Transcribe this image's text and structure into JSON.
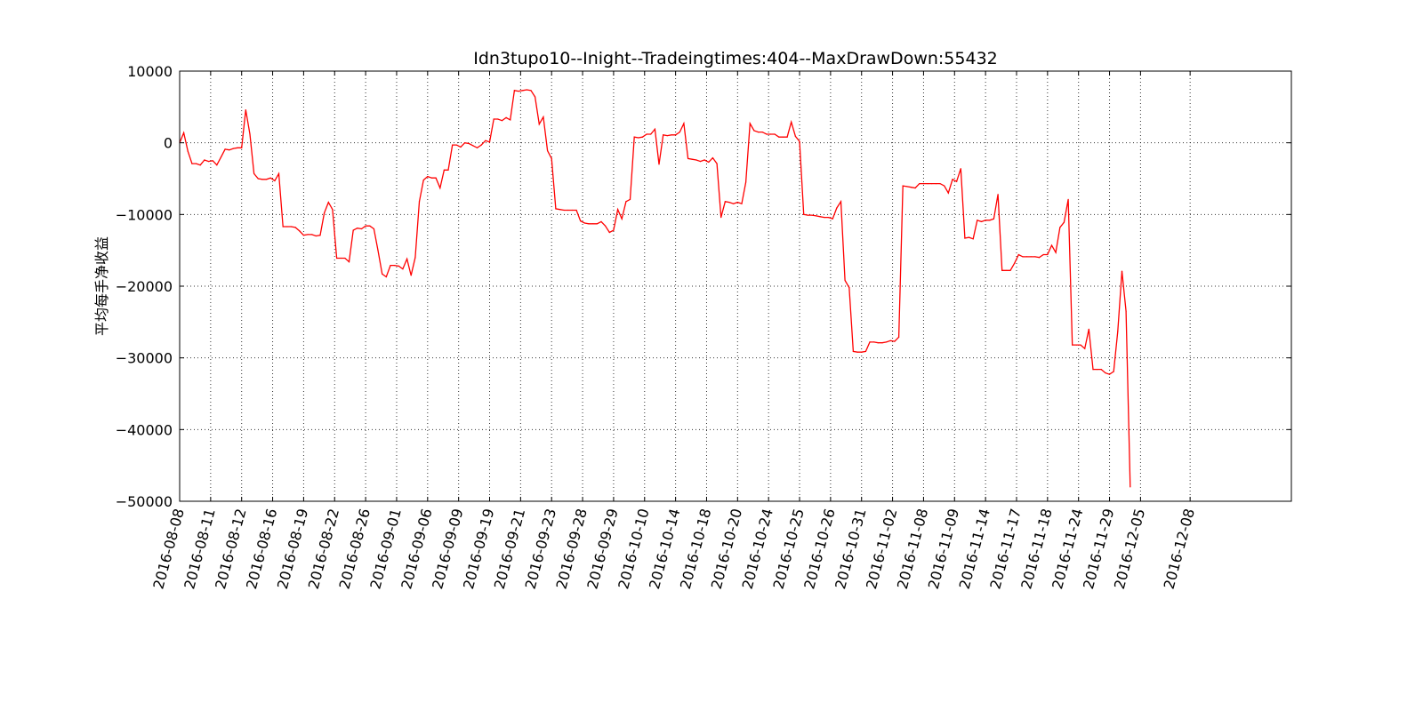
{
  "chart_data": {
    "type": "line",
    "title": "Idn3tupo10--Inight--Tradeingtimes:404--MaxDrawDown:55432",
    "xlabel": "",
    "ylabel": "平均每手净收益",
    "ylim": [
      -50000,
      10000
    ],
    "yticks": [
      10000,
      0,
      -10000,
      -20000,
      -30000,
      -40000,
      -50000
    ],
    "ytick_labels": [
      "10000",
      "0",
      "−10000",
      "−20000",
      "−30000",
      "−40000",
      "−50000"
    ],
    "xlim": [
      0,
      269
    ],
    "x_tick_positions": [
      0,
      7.5,
      15,
      22.5,
      30,
      37.5,
      45,
      52.5,
      60,
      67.5,
      75,
      82.5,
      90,
      97.5,
      105,
      112.5,
      120,
      127.5,
      135,
      142.5,
      150,
      157.5,
      165,
      172.5,
      180,
      187.5,
      195,
      202.5,
      210,
      217.5,
      225,
      232.5,
      244.5
    ],
    "x_tick_labels": [
      "2016-08-08",
      "2016-08-11",
      "2016-08-12",
      "2016-08-16",
      "2016-08-19",
      "2016-08-22",
      "2016-08-26",
      "2016-09-01",
      "2016-09-06",
      "2016-09-09",
      "2016-09-19",
      "2016-09-21",
      "2016-09-23",
      "2016-09-28",
      "2016-09-29",
      "2016-10-10",
      "2016-10-14",
      "2016-10-18",
      "2016-10-20",
      "2016-10-24",
      "2016-10-25",
      "2016-10-26",
      "2016-10-31",
      "2016-11-02",
      "2016-11-08",
      "2016-11-09",
      "2016-11-14",
      "2016-11-17",
      "2016-11-18",
      "2016-11-24",
      "2016-11-29",
      "2016-12-05",
      "2016-12-08"
    ],
    "grid": true,
    "series": [
      {
        "color": "#ff0000",
        "points": [
          [
            0,
            0
          ],
          [
            1,
            1400
          ],
          [
            2,
            -1200
          ],
          [
            3,
            -2900
          ],
          [
            4,
            -2900
          ],
          [
            5,
            -3100
          ],
          [
            6,
            -2400
          ],
          [
            7,
            -2600
          ],
          [
            8,
            -2500
          ],
          [
            9,
            -3100
          ],
          [
            10,
            -2000
          ],
          [
            11,
            -900
          ],
          [
            12,
            -1000
          ],
          [
            13,
            -800
          ],
          [
            14,
            -700
          ],
          [
            15,
            -700
          ],
          [
            16,
            4600
          ],
          [
            17,
            1200
          ],
          [
            18,
            -4300
          ],
          [
            19,
            -5000
          ],
          [
            20,
            -5100
          ],
          [
            21,
            -5100
          ],
          [
            22,
            -4900
          ],
          [
            23,
            -5300
          ],
          [
            24,
            -4300
          ],
          [
            25,
            -11700
          ],
          [
            26,
            -11700
          ],
          [
            27,
            -11700
          ],
          [
            28,
            -11800
          ],
          [
            29,
            -12300
          ],
          [
            30,
            -12900
          ],
          [
            31,
            -12800
          ],
          [
            32,
            -12800
          ],
          [
            33,
            -13000
          ],
          [
            34,
            -12900
          ],
          [
            35,
            -9800
          ],
          [
            36,
            -8300
          ],
          [
            37,
            -9300
          ],
          [
            38,
            -16100
          ],
          [
            39,
            -16100
          ],
          [
            40,
            -16100
          ],
          [
            41,
            -16600
          ],
          [
            42,
            -12200
          ],
          [
            43,
            -11900
          ],
          [
            44,
            -12000
          ],
          [
            45,
            -11600
          ],
          [
            46,
            -11600
          ],
          [
            47,
            -12000
          ],
          [
            48,
            -15000
          ],
          [
            49,
            -18300
          ],
          [
            50,
            -18700
          ],
          [
            51,
            -17100
          ],
          [
            52,
            -17100
          ],
          [
            53,
            -17200
          ],
          [
            54,
            -17600
          ],
          [
            55,
            -16200
          ],
          [
            56,
            -18500
          ],
          [
            57,
            -16000
          ],
          [
            58,
            -8200
          ],
          [
            59,
            -5200
          ],
          [
            60,
            -4700
          ],
          [
            61,
            -4900
          ],
          [
            62,
            -4900
          ],
          [
            63,
            -6300
          ],
          [
            64,
            -3800
          ],
          [
            65,
            -3800
          ],
          [
            66,
            -300
          ],
          [
            67,
            -300
          ],
          [
            68,
            -600
          ],
          [
            69,
            0
          ],
          [
            70,
            -100
          ],
          [
            71,
            -400
          ],
          [
            72,
            -700
          ],
          [
            73,
            -300
          ],
          [
            74,
            300
          ],
          [
            75,
            100
          ],
          [
            76,
            3300
          ],
          [
            77,
            3300
          ],
          [
            78,
            3100
          ],
          [
            79,
            3500
          ],
          [
            80,
            3200
          ],
          [
            81,
            7300
          ],
          [
            82,
            7200
          ],
          [
            83,
            7300
          ],
          [
            84,
            7400
          ],
          [
            85,
            7300
          ],
          [
            86,
            6400
          ],
          [
            87,
            2600
          ],
          [
            88,
            3600
          ],
          [
            89,
            -1100
          ],
          [
            90,
            -2200
          ],
          [
            91,
            -9200
          ],
          [
            92,
            -9300
          ],
          [
            93,
            -9400
          ],
          [
            94,
            -9400
          ],
          [
            95,
            -9400
          ],
          [
            96,
            -9400
          ],
          [
            97,
            -10900
          ],
          [
            98,
            -11200
          ],
          [
            99,
            -11300
          ],
          [
            100,
            -11300
          ],
          [
            101,
            -11300
          ],
          [
            102,
            -11000
          ],
          [
            103,
            -11600
          ],
          [
            104,
            -12500
          ],
          [
            105,
            -12200
          ],
          [
            106,
            -9300
          ],
          [
            107,
            -10600
          ],
          [
            108,
            -8200
          ],
          [
            109,
            -7900
          ],
          [
            110,
            800
          ],
          [
            111,
            700
          ],
          [
            112,
            800
          ],
          [
            113,
            1200
          ],
          [
            114,
            1200
          ],
          [
            115,
            1900
          ],
          [
            116,
            -3000
          ],
          [
            117,
            1100
          ],
          [
            118,
            1000
          ],
          [
            119,
            1100
          ],
          [
            120,
            1100
          ],
          [
            121,
            1500
          ],
          [
            122,
            2700
          ],
          [
            123,
            -2200
          ],
          [
            124,
            -2300
          ],
          [
            125,
            -2400
          ],
          [
            126,
            -2600
          ],
          [
            127,
            -2400
          ],
          [
            128,
            -2700
          ],
          [
            129,
            -2100
          ],
          [
            130,
            -2900
          ],
          [
            131,
            -10400
          ],
          [
            132,
            -8200
          ],
          [
            133,
            -8300
          ],
          [
            134,
            -8500
          ],
          [
            135,
            -8300
          ],
          [
            136,
            -8500
          ],
          [
            137,
            -5500
          ],
          [
            138,
            2700
          ],
          [
            139,
            1700
          ],
          [
            140,
            1500
          ],
          [
            141,
            1500
          ],
          [
            142,
            1200
          ],
          [
            143,
            1200
          ],
          [
            144,
            1200
          ],
          [
            145,
            800
          ],
          [
            146,
            800
          ],
          [
            147,
            800
          ],
          [
            148,
            2900
          ],
          [
            149,
            900
          ],
          [
            150,
            200
          ],
          [
            151,
            -10000
          ],
          [
            152,
            -10100
          ],
          [
            153,
            -10100
          ],
          [
            154,
            -10200
          ],
          [
            155,
            -10300
          ],
          [
            156,
            -10400
          ],
          [
            157,
            -10400
          ],
          [
            158,
            -10600
          ],
          [
            159,
            -9100
          ],
          [
            160,
            -8200
          ],
          [
            161,
            -19200
          ],
          [
            162,
            -20200
          ],
          [
            163,
            -29100
          ],
          [
            164,
            -29200
          ],
          [
            165,
            -29200
          ],
          [
            166,
            -29100
          ],
          [
            167,
            -27800
          ],
          [
            168,
            -27800
          ],
          [
            169,
            -27900
          ],
          [
            170,
            -27900
          ],
          [
            171,
            -27800
          ],
          [
            172,
            -27600
          ],
          [
            173,
            -27700
          ],
          [
            174,
            -27100
          ],
          [
            175,
            -6000
          ],
          [
            176,
            -6100
          ],
          [
            177,
            -6200
          ],
          [
            178,
            -6300
          ],
          [
            179,
            -5700
          ],
          [
            180,
            -5700
          ],
          [
            181,
            -5700
          ],
          [
            182,
            -5700
          ],
          [
            183,
            -5700
          ],
          [
            184,
            -5700
          ],
          [
            185,
            -6000
          ],
          [
            186,
            -7000
          ],
          [
            187,
            -5100
          ],
          [
            188,
            -5400
          ],
          [
            189,
            -3600
          ],
          [
            190,
            -13300
          ],
          [
            191,
            -13200
          ],
          [
            192,
            -13400
          ],
          [
            193,
            -10800
          ],
          [
            194,
            -11000
          ],
          [
            195,
            -10800
          ],
          [
            196,
            -10800
          ],
          [
            197,
            -10600
          ],
          [
            198,
            -7200
          ],
          [
            199,
            -17800
          ],
          [
            200,
            -17800
          ],
          [
            201,
            -17800
          ],
          [
            202,
            -16800
          ],
          [
            203,
            -15600
          ],
          [
            204,
            -15900
          ],
          [
            205,
            -15900
          ],
          [
            206,
            -15900
          ],
          [
            207,
            -15900
          ],
          [
            208,
            -16000
          ],
          [
            209,
            -15600
          ],
          [
            210,
            -15600
          ],
          [
            211,
            -14300
          ],
          [
            212,
            -15300
          ],
          [
            213,
            -11800
          ],
          [
            214,
            -11100
          ],
          [
            215,
            -7900
          ],
          [
            216,
            -28200
          ],
          [
            217,
            -28200
          ],
          [
            218,
            -28200
          ],
          [
            219,
            -28700
          ],
          [
            220,
            -26000
          ],
          [
            221,
            -31600
          ],
          [
            222,
            -31600
          ],
          [
            223,
            -31600
          ],
          [
            224,
            -32100
          ],
          [
            225,
            -32300
          ],
          [
            226,
            -31900
          ],
          [
            227,
            -26300
          ],
          [
            228,
            -17900
          ],
          [
            229,
            -23500
          ],
          [
            230,
            -48000
          ]
        ]
      }
    ]
  }
}
